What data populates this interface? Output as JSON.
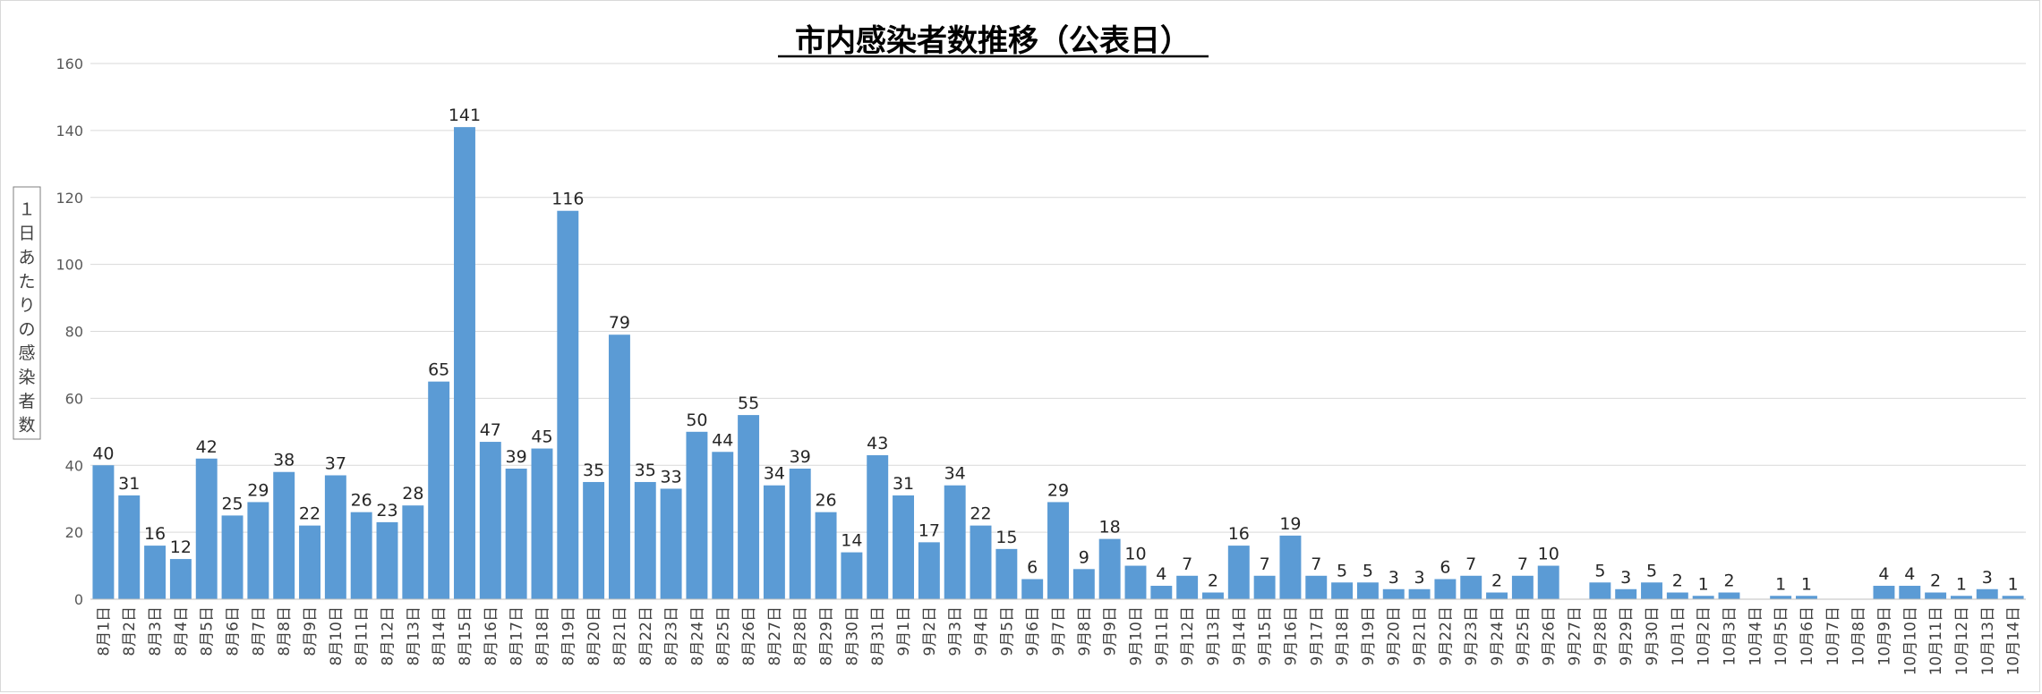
{
  "chart_data": {
    "type": "bar",
    "title": "市内感染者数推移（公表日）",
    "xlabel": "",
    "ylabel": "１日あたりの感染者数",
    "ylim": [
      0,
      160
    ],
    "yticks": [
      0,
      20,
      40,
      60,
      80,
      100,
      120,
      140,
      160
    ],
    "grid": true,
    "legend": "none",
    "bar_color": "#5b9bd5",
    "categories": [
      "8月1日",
      "8月2日",
      "8月3日",
      "8月4日",
      "8月5日",
      "8月6日",
      "8月7日",
      "8月8日",
      "8月9日",
      "8月10日",
      "8月11日",
      "8月12日",
      "8月13日",
      "8月14日",
      "8月15日",
      "8月16日",
      "8月17日",
      "8月18日",
      "8月19日",
      "8月20日",
      "8月21日",
      "8月22日",
      "8月23日",
      "8月24日",
      "8月25日",
      "8月26日",
      "8月27日",
      "8月28日",
      "8月29日",
      "8月30日",
      "8月31日",
      "9月1日",
      "9月2日",
      "9月3日",
      "9月4日",
      "9月5日",
      "9月6日",
      "9月7日",
      "9月8日",
      "9月9日",
      "9月10日",
      "9月11日",
      "9月12日",
      "9月13日",
      "9月14日",
      "9月15日",
      "9月16日",
      "9月17日",
      "9月18日",
      "9月19日",
      "9月20日",
      "9月21日",
      "9月22日",
      "9月23日",
      "9月24日",
      "9月25日",
      "9月26日",
      "9月27日",
      "9月28日",
      "9月29日",
      "9月30日",
      "10月1日",
      "10月2日",
      "10月3日",
      "10月4日",
      "10月5日",
      "10月6日",
      "10月7日",
      "10月8日",
      "10月9日",
      "10月10日",
      "10月11日",
      "10月12日",
      "10月13日",
      "10月14日"
    ],
    "values": [
      40,
      31,
      16,
      12,
      42,
      25,
      29,
      38,
      22,
      37,
      26,
      23,
      28,
      65,
      141,
      47,
      39,
      45,
      116,
      35,
      79,
      35,
      33,
      50,
      44,
      55,
      34,
      39,
      26,
      14,
      43,
      31,
      17,
      34,
      22,
      15,
      6,
      29,
      9,
      18,
      10,
      4,
      7,
      2,
      16,
      7,
      19,
      7,
      5,
      5,
      3,
      3,
      6,
      7,
      2,
      7,
      10,
      0,
      5,
      3,
      5,
      2,
      1,
      2,
      0,
      1,
      1,
      0,
      0,
      4,
      4,
      2,
      1,
      3,
      1
    ]
  }
}
